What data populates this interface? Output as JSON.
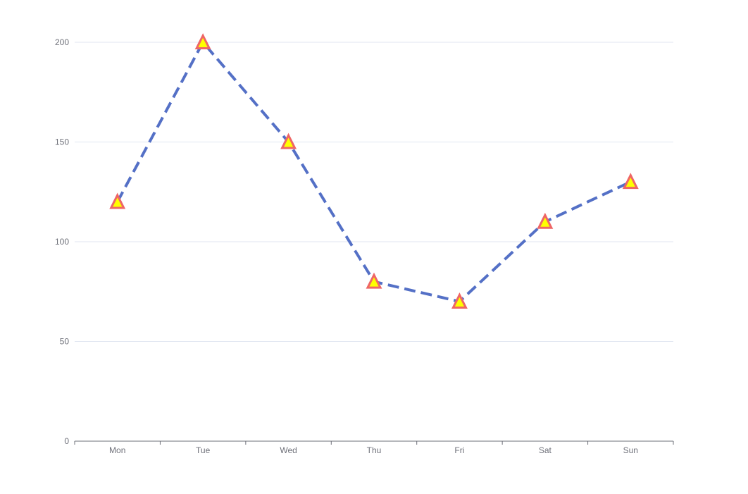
{
  "chart_data": {
    "type": "line",
    "title": "",
    "xlabel": "",
    "ylabel": "",
    "categories": [
      "Mon",
      "Tue",
      "Wed",
      "Thu",
      "Fri",
      "Sat",
      "Sun"
    ],
    "series": [
      {
        "values": [
          120,
          200,
          150,
          80,
          70,
          110,
          130
        ]
      }
    ],
    "ylim": [
      0,
      200
    ],
    "yticks": [
      0,
      50,
      100,
      150,
      200
    ],
    "grid": true,
    "line_style": "dashed",
    "marker": "triangle",
    "colors": {
      "line": "#5470c6",
      "marker_fill": "#ffff00",
      "marker_stroke": "#ee6666",
      "grid": "#e0e6f1",
      "axis": "#6e7079",
      "label": "#6e7079"
    }
  }
}
